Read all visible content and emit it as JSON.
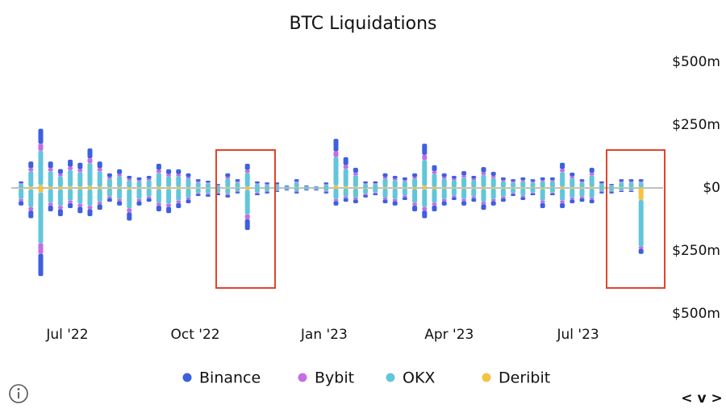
{
  "chart_data": {
    "type": "diverging_stacked_bar",
    "title": "BTC Liquidations",
    "x": [
      0,
      1,
      2,
      3,
      4,
      5,
      6,
      7,
      8,
      9,
      10,
      11,
      12,
      13,
      14,
      15,
      16,
      17,
      18,
      19,
      20,
      21,
      22,
      23,
      24,
      25,
      26,
      27,
      28,
      29,
      30,
      31,
      32,
      33,
      34,
      35,
      36,
      37,
      38,
      39,
      40,
      41,
      42,
      43,
      44,
      45,
      46,
      47,
      48,
      49,
      50,
      51,
      52,
      53,
      54,
      55,
      56,
      57,
      58,
      59,
      60,
      61,
      62,
      63
    ],
    "xlim": [
      -0.5,
      63.5
    ],
    "xticks": [
      {
        "value": 4.7,
        "label": "Jul '22"
      },
      {
        "value": 17.7,
        "label": "Oct '22"
      },
      {
        "value": 30.8,
        "label": "Jan '23"
      },
      {
        "value": 43.5,
        "label": "Apr '23"
      },
      {
        "value": 56.6,
        "label": "Jul '23"
      }
    ],
    "ylim": [
      -500,
      500
    ],
    "yticks": [
      {
        "value": 500,
        "label": "$500m"
      },
      {
        "value": 250,
        "label": "$250m"
      },
      {
        "value": 0,
        "label": "$0"
      },
      {
        "value": -250,
        "label": "$250m"
      },
      {
        "value": -500,
        "label": "$500m"
      }
    ],
    "series": [
      {
        "name": "Binance",
        "color": "#3d5fe0",
        "values": [
          7,
          26,
          59,
          26,
          19,
          28,
          25,
          39,
          26,
          15,
          19,
          12,
          11,
          12,
          24,
          19,
          19,
          15,
          9,
          7,
          4,
          15,
          9,
          24,
          7,
          6,
          6,
          3,
          9,
          3,
          2,
          6,
          49,
          31,
          20,
          7,
          7,
          15,
          12,
          11,
          15,
          44,
          23,
          15,
          12,
          17,
          12,
          21,
          16,
          11,
          9,
          11,
          9,
          11,
          11,
          25,
          15,
          9,
          20,
          7,
          4,
          9,
          9,
          9
        ],
        "values_below": [
          -18,
          -30,
          -88,
          -23,
          -28,
          -20,
          -25,
          -28,
          -22,
          -14,
          -18,
          -33,
          -18,
          -14,
          -23,
          -25,
          -20,
          -15,
          -8,
          -9,
          -7,
          -10,
          -6,
          -42,
          -7,
          -6,
          -4,
          -3,
          -6,
          -3,
          -3,
          -6,
          -18,
          -14,
          -15,
          -10,
          -7,
          -15,
          -18,
          -12,
          -23,
          -30,
          -23,
          -18,
          -12,
          -18,
          -14,
          -22,
          -18,
          -14,
          -8,
          -12,
          -7,
          -20,
          -7,
          -20,
          -15,
          -14,
          -15,
          -6,
          -6,
          -4,
          -4,
          -20
        ]
      },
      {
        "name": "Bybit",
        "color": "#c46ee6",
        "values": [
          3,
          13,
          28,
          13,
          9,
          13,
          12,
          19,
          13,
          7,
          9,
          6,
          5,
          6,
          12,
          9,
          9,
          7,
          4,
          3,
          2,
          7,
          4,
          12,
          3,
          3,
          3,
          1,
          4,
          1,
          1,
          3,
          23,
          15,
          10,
          3,
          3,
          7,
          6,
          5,
          7,
          21,
          11,
          7,
          6,
          8,
          6,
          10,
          8,
          5,
          4,
          5,
          4,
          5,
          5,
          12,
          7,
          4,
          10,
          3,
          2,
          4,
          4,
          4
        ],
        "values_below": [
          -8,
          -14,
          -42,
          -11,
          -13,
          -10,
          -12,
          -13,
          -10,
          -7,
          -8,
          -16,
          -8,
          -7,
          -11,
          -12,
          -10,
          -7,
          -4,
          -4,
          -3,
          -5,
          -3,
          -20,
          -3,
          -3,
          -2,
          -1,
          -3,
          -1,
          -1,
          -3,
          -8,
          -7,
          -7,
          -5,
          -3,
          -7,
          -8,
          -6,
          -11,
          -14,
          -11,
          -8,
          -6,
          -8,
          -7,
          -10,
          -8,
          -7,
          -4,
          -6,
          -3,
          -10,
          -3,
          -10,
          -7,
          -7,
          -7,
          -3,
          -3,
          -2,
          -2,
          -10
        ]
      },
      {
        "name": "OKX",
        "color": "#62c6da",
        "values": [
          15,
          61,
          136,
          61,
          43,
          65,
          58,
          91,
          61,
          33,
          42,
          28,
          24,
          28,
          55,
          42,
          42,
          33,
          20,
          18,
          9,
          33,
          20,
          55,
          15,
          12,
          12,
          5,
          20,
          5,
          3,
          12,
          113,
          70,
          46,
          15,
          15,
          33,
          28,
          24,
          33,
          102,
          52,
          33,
          28,
          39,
          28,
          48,
          37,
          24,
          20,
          24,
          20,
          24,
          24,
          58,
          36,
          20,
          46,
          15,
          9,
          20,
          20,
          20
        ],
        "values_below": [
          -41,
          -70,
          -202,
          -54,
          -65,
          -46,
          -58,
          -65,
          -51,
          -31,
          -41,
          -75,
          -41,
          -31,
          -54,
          -58,
          -46,
          -36,
          -18,
          -20,
          -18,
          -21,
          -12,
          -97,
          -18,
          -12,
          -9,
          -5,
          -12,
          -5,
          -5,
          -12,
          -41,
          -31,
          -36,
          -21,
          -18,
          -36,
          -41,
          -28,
          -54,
          -70,
          -54,
          -41,
          -28,
          -41,
          -31,
          -51,
          -41,
          -31,
          -18,
          -28,
          -18,
          -46,
          -18,
          -46,
          -36,
          -31,
          -36,
          -12,
          -12,
          -9,
          -9,
          -184
        ]
      },
      {
        "name": "Deribit",
        "color": "#f4c244",
        "values": [
          1,
          5,
          12,
          5,
          4,
          6,
          5,
          8,
          5,
          3,
          4,
          2,
          2,
          2,
          5,
          4,
          4,
          3,
          2,
          1,
          1,
          3,
          2,
          5,
          1,
          1,
          1,
          1,
          2,
          1,
          0,
          1,
          10,
          6,
          4,
          1,
          1,
          3,
          2,
          2,
          3,
          9,
          4,
          3,
          2,
          3,
          2,
          4,
          3,
          2,
          2,
          2,
          2,
          2,
          2,
          5,
          3,
          2,
          4,
          1,
          1,
          2,
          2,
          2
        ],
        "values_below": [
          -3,
          -6,
          -18,
          -5,
          -6,
          -4,
          -5,
          -6,
          -4,
          -3,
          -3,
          -6,
          -3,
          -3,
          -5,
          -5,
          -4,
          -3,
          -2,
          -2,
          -1,
          -2,
          -1,
          -8,
          -1,
          -1,
          -1,
          -1,
          -1,
          -1,
          -1,
          -1,
          -3,
          -3,
          -3,
          -2,
          -1,
          -3,
          -3,
          -2,
          -5,
          -6,
          -5,
          -3,
          -2,
          -3,
          -3,
          -4,
          -3,
          -3,
          -2,
          -2,
          -1,
          -4,
          -1,
          -4,
          -3,
          -3,
          -3,
          -1,
          -1,
          -1,
          -1,
          -48
        ]
      }
    ],
    "controls": "< v >"
  }
}
